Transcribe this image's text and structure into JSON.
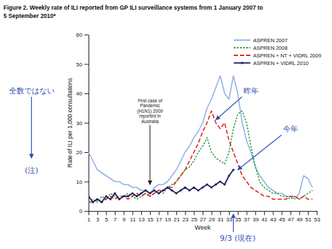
{
  "chart_data": {
    "type": "line",
    "title": "Figure 2. Weekly rate of ILI reported from GP ILI surveillance systems from 1 January 2007 to\n5 September 2010*",
    "x_label": "Week",
    "y_label": "Rate of ILI per 1,000 consultations",
    "x": [
      1,
      2,
      3,
      4,
      5,
      6,
      7,
      8,
      9,
      10,
      11,
      12,
      13,
      14,
      15,
      16,
      17,
      18,
      19,
      20,
      21,
      22,
      23,
      24,
      25,
      26,
      27,
      28,
      29,
      30,
      31,
      32,
      33,
      34,
      35,
      36,
      37,
      38,
      39,
      40,
      41,
      42,
      43,
      44,
      45,
      46,
      47,
      48,
      49,
      50,
      51,
      52
    ],
    "xlim": [
      1,
      53
    ],
    "xticks": [
      1,
      3,
      5,
      7,
      9,
      11,
      13,
      15,
      17,
      19,
      21,
      23,
      25,
      27,
      29,
      31,
      33,
      35,
      37,
      39,
      41,
      43,
      45,
      47,
      49,
      51,
      53
    ],
    "ylim": [
      0,
      60
    ],
    "yticks": [
      0,
      10,
      20,
      30,
      40,
      50,
      60
    ],
    "grid": false,
    "legend": "top-right",
    "series": [
      {
        "name": "ASPREN 2007",
        "color": "#8fb4e3",
        "line_style": "solid",
        "values": [
          20,
          17,
          14,
          13,
          12,
          11,
          10,
          10,
          9,
          9,
          8,
          8,
          7,
          7,
          6,
          8,
          9,
          9,
          10,
          12,
          14,
          17,
          20,
          22,
          25,
          27,
          30,
          35,
          38,
          42,
          46,
          40,
          38,
          46,
          40,
          30,
          24,
          20,
          15,
          12,
          10,
          8,
          7,
          6,
          6,
          5,
          5,
          4,
          6,
          12,
          11,
          8
        ]
      },
      {
        "name": "ASPREN 2008",
        "color": "#2e9e3e",
        "line_style": "dotted",
        "values": [
          3,
          4,
          3,
          5,
          4,
          6,
          5,
          4,
          5,
          6,
          5,
          4,
          5,
          6,
          5,
          6,
          7,
          6,
          8,
          9,
          10,
          12,
          14,
          15,
          17,
          20,
          22,
          25,
          20,
          18,
          17,
          16,
          20,
          28,
          33,
          34,
          30,
          22,
          15,
          10,
          8,
          7,
          6,
          6,
          5,
          5,
          4,
          5,
          4,
          5,
          6,
          7
        ]
      },
      {
        "name": "ASPREN + NT + VIDRL 2009",
        "color": "#e0241f",
        "line_style": "dashed",
        "values": [
          3,
          3,
          4,
          3,
          4,
          5,
          4,
          5,
          5,
          4,
          5,
          6,
          5,
          6,
          5,
          6,
          7,
          7,
          8,
          8,
          10,
          12,
          14,
          17,
          20,
          23,
          27,
          30,
          34,
          30,
          28,
          30,
          24,
          20,
          16,
          12,
          10,
          8,
          7,
          6,
          5,
          5,
          4,
          4,
          4,
          4,
          5,
          5,
          4,
          5,
          4,
          4
        ]
      },
      {
        "name": "ASPREN + VIDRL 2010",
        "color": "#1a1f5e",
        "line_style": "solid",
        "marker": "circle",
        "values": [
          5,
          3,
          4,
          3,
          5,
          4,
          6,
          4,
          5,
          5,
          6,
          5,
          6,
          7,
          6,
          7,
          6,
          7,
          8,
          7,
          6,
          7,
          8,
          7,
          8,
          7,
          8,
          9,
          8,
          9,
          10,
          9,
          12,
          14,
          null,
          null,
          null,
          null,
          null,
          null,
          null,
          null,
          null,
          null,
          null,
          null,
          null,
          null,
          null,
          null,
          null,
          null
        ]
      }
    ],
    "annotations": [
      {
        "text": "First case of\nPandemic\n(H1N1) 2009\nreported in\nAustralia",
        "x": 15,
        "y": 37,
        "arrow_x": 15,
        "arrow_y": 9
      }
    ],
    "handwritten_annotations": [
      {
        "text": "昨年",
        "x": 38,
        "y": 40,
        "arrow_x": 30,
        "arrow_y": 31
      },
      {
        "text": "今年",
        "x": 47,
        "y": 27,
        "arrow_x": 35,
        "arrow_y": 14
      },
      {
        "text": "全数ではない",
        "x": -12,
        "y": 40,
        "arrow_x": -12,
        "arrow_y": 18
      },
      {
        "text": "(注)",
        "x": -12,
        "y": 13
      },
      {
        "text": "9/3 (現在)",
        "x": 35,
        "y": -10,
        "arrow_x": 34,
        "arrow_y": -1
      }
    ]
  }
}
